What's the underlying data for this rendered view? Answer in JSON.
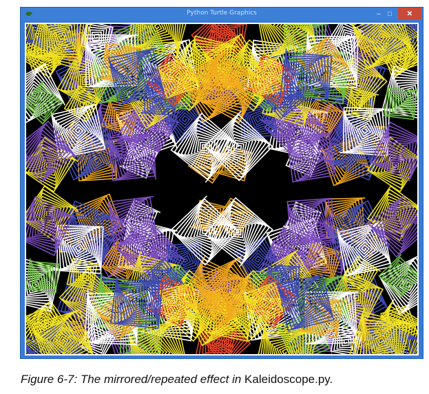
{
  "window": {
    "title": "Python Turtle Graphics",
    "buttons": {
      "minimize": "–",
      "maximize": "□",
      "close": "✕"
    }
  },
  "canvas": {
    "background": "#000000",
    "palette": [
      "#f2a81d",
      "#ffffff",
      "#3c49b5",
      "#7c4cbf",
      "#6dbf3f",
      "#e6452a",
      "#f1e322"
    ],
    "content": "randomly placed, rotated spiral squares mirrored into four quadrants"
  },
  "caption": {
    "prefix": "Figure 6-7: The mirrored/repeated effect in ",
    "filename": "Kaleidoscope.py."
  },
  "icons": [
    "turtle-icon",
    "minimize-icon",
    "maximize-icon",
    "close-icon"
  ]
}
